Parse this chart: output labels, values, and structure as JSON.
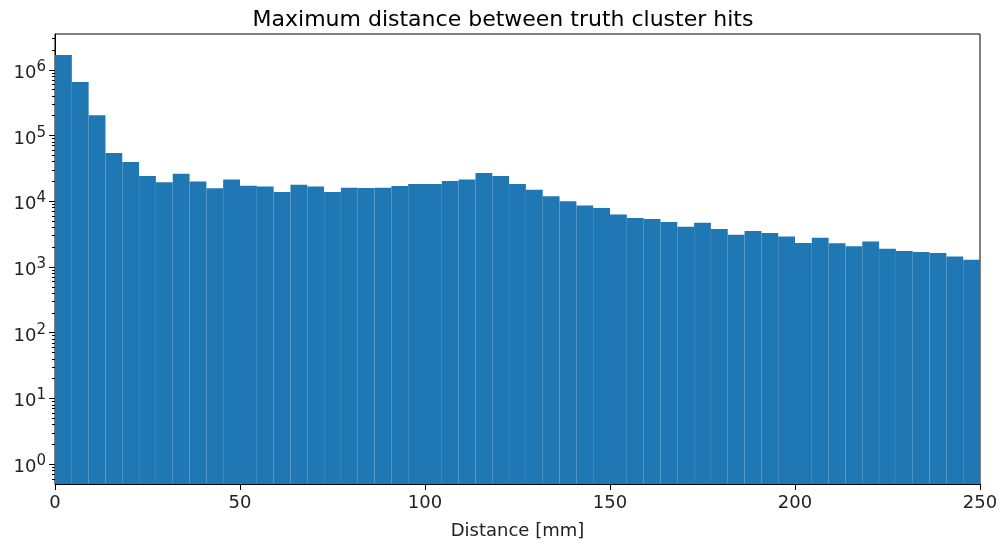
{
  "chart_data": {
    "type": "histogram",
    "title": "Maximum distance between truth cluster hits",
    "xlabel": "Distance [mm]",
    "color": "#1f77b4",
    "bins": [
      0,
      4.55,
      9.09,
      13.64,
      18.18,
      22.73,
      27.27,
      31.82,
      36.36,
      40.91,
      45.45,
      50,
      54.55,
      59.09,
      63.64,
      68.18,
      72.73,
      77.27,
      81.82,
      86.36,
      90.91,
      95.45,
      100,
      104.55,
      109.09,
      113.64,
      118.18,
      122.73,
      127.27,
      131.82,
      136.36,
      140.91,
      145.45,
      150,
      154.55,
      159.09,
      163.64,
      168.18,
      172.73,
      177.27,
      181.82,
      186.36,
      190.91,
      195.45,
      200,
      204.55,
      209.09,
      213.64,
      218.18,
      222.73,
      227.27,
      231.82,
      236.36,
      240.91,
      245.45,
      250
    ],
    "values": [
      1680000,
      650000,
      203000,
      54000,
      39500,
      24200,
      19400,
      26200,
      20000,
      15700,
      21400,
      17200,
      16800,
      13800,
      17800,
      16800,
      13800,
      16100,
      15900,
      16100,
      17000,
      18300,
      18300,
      20300,
      21500,
      26900,
      24200,
      18300,
      15000,
      11900,
      10000,
      8650,
      7870,
      6300,
      5550,
      5360,
      4820,
      4090,
      4720,
      3780,
      3090,
      3520,
      3280,
      2920,
      2310,
      2790,
      2290,
      2060,
      2450,
      1890,
      1750,
      1690,
      1630,
      1450,
      1290
    ],
    "log": "y",
    "xlim": [
      0,
      250
    ],
    "xticks": [
      0,
      50,
      100,
      150,
      200,
      250
    ],
    "ylim": [
      0.5,
      3500000
    ],
    "yticks": [
      {
        "value": 1,
        "label": "10$^{0}$"
      },
      {
        "value": 10,
        "label": "10$^{1}$"
      },
      {
        "value": 100,
        "label": "10$^{2}$"
      },
      {
        "value": 1000,
        "label": "10$^{3}$"
      },
      {
        "value": 10000,
        "label": "10$^{4}$"
      },
      {
        "value": 100000,
        "label": "10$^{5}$"
      },
      {
        "value": 1000000,
        "label": "10$^{6}$"
      }
    ],
    "grid": false
  }
}
